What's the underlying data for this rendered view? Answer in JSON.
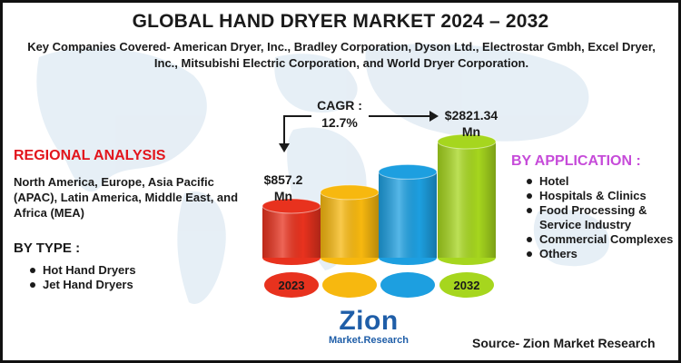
{
  "title": "GLOBAL HAND DRYER MARKET 2024 – 2032",
  "subtitle": "Key Companies Covered- American Dryer, Inc., Bradley Corporation, Dyson Ltd., Electrostar Gmbh, Excel Dryer, Inc., Mitsubishi Electric Corporation, and World Dryer Corporation.",
  "regional": {
    "heading": "REGIONAL ANALYSIS",
    "text": "North America, Europe, Asia Pacific (APAC), Latin America, Middle East, and Africa (MEA)"
  },
  "by_type": {
    "heading": "BY TYPE :",
    "items": [
      "Hot Hand Dryers",
      "Jet Hand Dryers"
    ]
  },
  "by_application": {
    "heading": "BY APPLICATION :",
    "items": [
      "Hotel",
      "Hospitals & Clinics",
      "Food Processing & Service Industry",
      "Commercial Complexes",
      "Others"
    ]
  },
  "cagr_label": "CAGR : 12.7%",
  "source": "Source- Zion Market Research",
  "logo": {
    "name": "Zion",
    "tagline": "Market.Research"
  },
  "colors": {
    "title": "#1a1a1a",
    "regional_heading": "#e2151c",
    "application_heading": "#c64bd9",
    "logo": "#1f5ea8"
  },
  "chart_data": {
    "type": "bar",
    "categories": [
      "2023",
      "",
      "",
      "2032"
    ],
    "values": [
      857.2,
      null,
      null,
      2821.34
    ],
    "value_labels": [
      "$857.2 Mn",
      "",
      "",
      "$2821.34 Mn"
    ],
    "bar_colors": [
      "#e8321e",
      "#f7b80f",
      "#1d9fe0",
      "#a6d61e"
    ],
    "cagr": "12.7%",
    "unit": "Mn"
  }
}
